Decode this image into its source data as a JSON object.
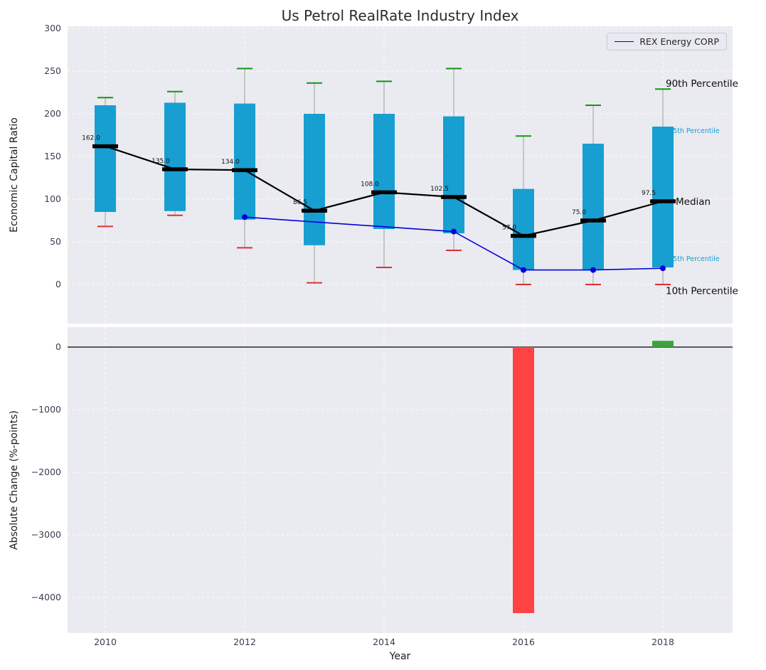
{
  "figure": {
    "title": "Us Petrol RealRate Industry Index",
    "colors": {
      "panel_bg": "#eaeaf1",
      "grid": "#ffffff",
      "box": "#179fd1",
      "median": "#000000",
      "p90_cap": "#129612",
      "p10_cap": "#e03030",
      "whisker": "#a0a0a0",
      "rex_line": "#0000dd",
      "neg_bar": "#ff4242",
      "pos_bar": "#3da23d",
      "tick_text": "#3b3b4f",
      "annotation_teal": "#1a9ecb",
      "annotation_black": "#0d0d0d"
    }
  },
  "legend": {
    "label": "REX Energy CORP"
  },
  "chart_data": [
    {
      "type": "boxplot",
      "title": "Us Petrol RealRate Industry Index",
      "ylabel": "Economic Capital Ratio",
      "ylim": [
        -46,
        303
      ],
      "yticks": [
        0,
        50,
        100,
        150,
        200,
        250,
        300
      ],
      "grid": true,
      "legend_position": "upper right",
      "categories": [
        2010,
        2011,
        2012,
        2013,
        2014,
        2015,
        2016,
        2017,
        2018
      ],
      "p90": [
        219,
        226,
        253,
        236,
        238,
        253,
        174,
        210,
        229
      ],
      "p75": [
        210,
        213,
        212,
        200,
        200,
        197,
        112,
        165,
        185
      ],
      "median": [
        162,
        135,
        134,
        86.5,
        108,
        102.5,
        57,
        75,
        97.5
      ],
      "p25": [
        85,
        86,
        76,
        46,
        65,
        60,
        17,
        17,
        20
      ],
      "p10": [
        68,
        81,
        43,
        2,
        20,
        40,
        0,
        0,
        0
      ],
      "median_labels": [
        "162.0",
        "135.0",
        "134.0",
        "86.5",
        "108.0",
        "102.5",
        "57.0",
        "75.0",
        "97.5"
      ],
      "series": [
        {
          "name": "REX Energy CORP",
          "x": [
            2012,
            2015,
            2016,
            2017,
            2018
          ],
          "y": [
            79,
            62,
            17,
            17,
            19
          ]
        }
      ],
      "annotations": [
        {
          "text": "90th Percentile",
          "value": 236,
          "color": "black",
          "size": "large"
        },
        {
          "text": "75th Percentile",
          "value": 181,
          "color": "teal",
          "size": "small"
        },
        {
          "text": "Median",
          "value": 97.5,
          "color": "black",
          "size": "large"
        },
        {
          "text": "25th Percentile",
          "value": 31,
          "color": "teal",
          "size": "small"
        },
        {
          "text": "10th Percentile",
          "value": -7,
          "color": "black",
          "size": "large"
        }
      ]
    },
    {
      "type": "bar",
      "ylabel": "Absolute Change (%-points)",
      "xlabel": "Year",
      "ylim": [
        -4570,
        320
      ],
      "yticks": [
        0,
        -1000,
        -2000,
        -3000,
        -4000
      ],
      "ytick_labels": [
        "0",
        "−1000",
        "−2000",
        "−3000",
        "−4000"
      ],
      "xticks": [
        2010,
        2012,
        2014,
        2016,
        2018
      ],
      "bars": [
        {
          "x": 2016,
          "value": -4250,
          "color": "#ff4242"
        },
        {
          "x": 2018,
          "value": 100,
          "color": "#3da23d"
        }
      ]
    }
  ]
}
